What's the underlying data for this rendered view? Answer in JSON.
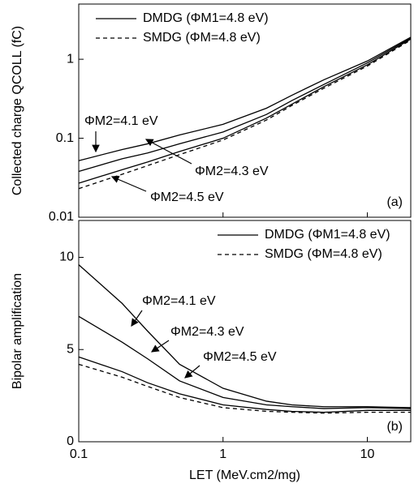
{
  "chart_data": [
    {
      "type": "line",
      "panel_label": "(a)",
      "ylabel": "Collected charge QCOLL (fC)",
      "xlog": true,
      "ylog": true,
      "xlim": [
        0.1,
        20
      ],
      "ylim": [
        0.01,
        5
      ],
      "xticks": [
        0.1,
        1,
        10
      ],
      "yticks": [
        0.01,
        0.1,
        1
      ],
      "show_xtick_labels": false,
      "groups": [
        {
          "name": "DMDG (ΦM1=4.8 eV)",
          "dash": "solid"
        },
        {
          "name": "SMDG (ΦM=4.8 eV)",
          "dash": "dashed"
        }
      ],
      "x": [
        0.1,
        0.2,
        0.3,
        0.5,
        1,
        2,
        3,
        5,
        10,
        20
      ],
      "series": [
        {
          "name": "ΦM2=4.1 eV",
          "group": 0,
          "color": "#000000",
          "values": [
            0.052,
            0.072,
            0.085,
            0.11,
            0.15,
            0.24,
            0.35,
            0.55,
            0.95,
            1.9
          ]
        },
        {
          "name": "ΦM2=4.3 eV",
          "group": 0,
          "color": "#000000",
          "values": [
            0.038,
            0.055,
            0.065,
            0.085,
            0.12,
            0.2,
            0.3,
            0.48,
            0.9,
            1.85
          ]
        },
        {
          "name": "ΦM2=4.5 eV",
          "group": 0,
          "color": "#000000",
          "values": [
            0.027,
            0.04,
            0.05,
            0.068,
            0.1,
            0.18,
            0.27,
            0.45,
            0.85,
            1.8
          ]
        },
        {
          "group": 1,
          "color": "#000000",
          "values": [
            0.023,
            0.035,
            0.045,
            0.062,
            0.095,
            0.17,
            0.26,
            0.43,
            0.82,
            1.75
          ]
        }
      ]
    },
    {
      "type": "line",
      "panel_label": "(b)",
      "ylabel": "Bipolar amplification",
      "xlabel": "LET (MeV.cm2/mg)",
      "xlog": true,
      "ylog": false,
      "xlim": [
        0.1,
        20
      ],
      "ylim": [
        0,
        12
      ],
      "xticks": [
        0.1,
        1,
        10
      ],
      "yticks": [
        0,
        5,
        10
      ],
      "show_xtick_labels": true,
      "groups": [
        {
          "name": "DMDG (ΦM1=4.8 eV)",
          "dash": "solid"
        },
        {
          "name": "SMDG (ΦM=4.8 eV)",
          "dash": "dashed"
        }
      ],
      "x": [
        0.1,
        0.2,
        0.3,
        0.5,
        1,
        2,
        3,
        5,
        10,
        20
      ],
      "series": [
        {
          "name": "ΦM2=4.1 eV",
          "group": 0,
          "color": "#000000",
          "values": [
            9.6,
            7.5,
            6,
            4.2,
            2.9,
            2.2,
            2.0,
            1.9,
            1.9,
            1.85
          ]
        },
        {
          "name": "ΦM2=4.3 eV",
          "group": 0,
          "color": "#000000",
          "values": [
            6.8,
            5.4,
            4.5,
            3.3,
            2.4,
            2.0,
            1.9,
            1.8,
            1.85,
            1.8
          ]
        },
        {
          "name": "ΦM2=4.5 eV",
          "group": 0,
          "color": "#000000",
          "values": [
            4.6,
            3.8,
            3.2,
            2.6,
            2.0,
            1.75,
            1.65,
            1.6,
            1.7,
            1.7
          ]
        },
        {
          "group": 1,
          "color": "#000000",
          "values": [
            4.2,
            3.5,
            3.0,
            2.4,
            1.85,
            1.65,
            1.6,
            1.55,
            1.6,
            1.6
          ]
        }
      ]
    }
  ]
}
